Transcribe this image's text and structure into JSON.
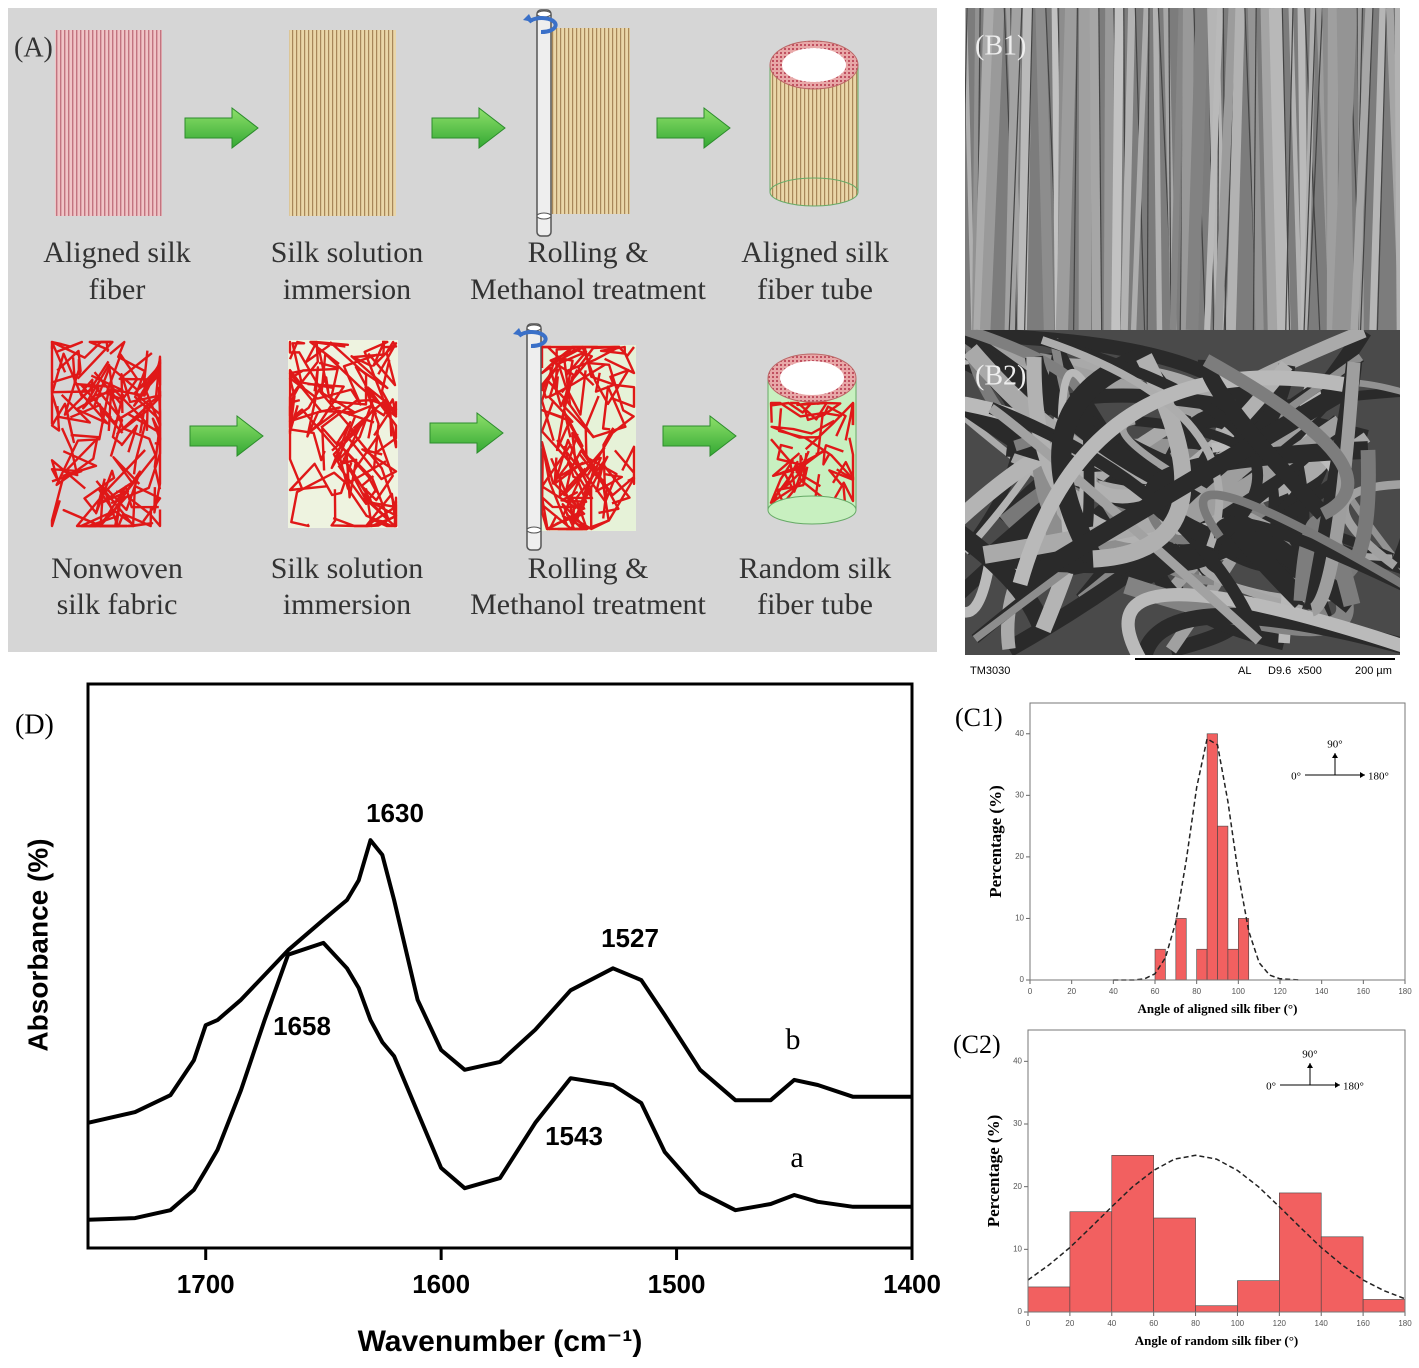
{
  "schematic": {
    "label": "(A)",
    "row1": [
      [
        "Aligned silk",
        "fiber"
      ],
      [
        "Silk solution",
        "immersion"
      ],
      [
        "Rolling &",
        "Methanol treatment"
      ],
      [
        "Aligned silk",
        "fiber tube"
      ]
    ],
    "row2": [
      [
        "Nonwoven",
        "silk fabric"
      ],
      [
        "Silk solution",
        "immersion"
      ],
      [
        "Rolling &",
        "Methanol treatment"
      ],
      [
        "Random silk",
        "fiber tube"
      ]
    ]
  },
  "sem": {
    "labels": [
      "(B1)",
      "(B2)"
    ],
    "footer_left": "TM3030",
    "footer_right": [
      "AL",
      "D9.6",
      "x500",
      "200 µm"
    ]
  },
  "chart_data": [
    {
      "type": "line",
      "panel_label": "(D)",
      "x_label": "Wavenumber (cm⁻¹)",
      "y_label": "Absorbance (%)",
      "x": [
        1750,
        1730,
        1715,
        1705,
        1700,
        1695,
        1685,
        1675,
        1665,
        1650,
        1640,
        1635,
        1630,
        1625,
        1620,
        1610,
        1600,
        1590,
        1575,
        1560,
        1545,
        1527,
        1515,
        1505,
        1490,
        1475,
        1460,
        1450,
        1440,
        1425,
        1400
      ],
      "xlim": [
        1750,
        1400
      ],
      "xticks": [
        1700,
        1600,
        1500,
        1400
      ],
      "ylim": [
        0,
        100
      ],
      "series": [
        {
          "name": "b",
          "color": "#000000",
          "values": [
            22.2,
            24.1,
            27.1,
            33.3,
            39.5,
            40.4,
            44.0,
            48.4,
            52.8,
            58.2,
            61.7,
            65.2,
            72.3,
            69.7,
            61.7,
            44.0,
            35.1,
            31.6,
            33.0,
            38.7,
            45.7,
            49.6,
            47.5,
            41.3,
            31.6,
            26.2,
            26.2,
            29.8,
            28.9,
            26.8,
            26.8
          ]
        },
        {
          "name": "a",
          "color": "#000000",
          "values": [
            5.0,
            5.3,
            6.7,
            10.3,
            13.8,
            17.4,
            28.0,
            40.4,
            52.0,
            54.1,
            49.6,
            46.1,
            40.4,
            36.5,
            34.0,
            24.1,
            14.2,
            10.6,
            12.4,
            22.2,
            30.1,
            28.9,
            25.7,
            17.0,
            9.9,
            6.7,
            7.8,
            9.4,
            8.2,
            7.3,
            7.3
          ]
        }
      ],
      "annotations": [
        "1630",
        "1527",
        "1658",
        "1543"
      ]
    },
    {
      "type": "histogram",
      "panel_label": "(C1)",
      "x_label": "Angle of aligned silk fiber (°)",
      "y_label": "Percentage (%)",
      "bins": [
        60,
        65,
        70,
        75,
        80,
        85,
        90,
        95,
        100,
        105
      ],
      "values": [
        5,
        0,
        10,
        0,
        5,
        40,
        25,
        5,
        10
      ],
      "color": "#f26060",
      "xlim": [
        0,
        180
      ],
      "xticks": [
        0,
        20,
        40,
        60,
        80,
        100,
        120,
        140,
        160,
        180
      ],
      "ylim": [
        0,
        45
      ],
      "yticks": [
        0,
        10,
        20,
        30,
        40
      ],
      "fit": {
        "x": [
          40,
          50,
          55,
          60,
          65,
          70,
          75,
          80,
          85,
          90,
          95,
          100,
          105,
          110,
          115,
          120,
          130
        ],
        "values": [
          0.0,
          0.0,
          0.2,
          1.0,
          3.6,
          9.4,
          19.5,
          31.3,
          39.2,
          38.2,
          29.0,
          17.2,
          7.9,
          2.8,
          0.8,
          0.2,
          0.0
        ]
      },
      "inset": [
        "90°",
        "0°",
        "180°"
      ]
    },
    {
      "type": "histogram",
      "panel_label": "(C2)",
      "x_label": "Angle of random silk fiber (°)",
      "y_label": "Percentage (%)",
      "bins": [
        0,
        20,
        40,
        60,
        80,
        100,
        120,
        140,
        160,
        180
      ],
      "values": [
        4,
        16,
        25,
        15,
        1,
        5,
        19,
        12,
        2
      ],
      "color": "#f26060",
      "xlim": [
        0,
        180
      ],
      "xticks": [
        0,
        20,
        40,
        60,
        80,
        100,
        120,
        140,
        160,
        180
      ],
      "ylim": [
        0,
        45
      ],
      "yticks": [
        0,
        10,
        20,
        30,
        40
      ],
      "fit": {
        "x": [
          0,
          10,
          20,
          30,
          40,
          50,
          60,
          70,
          80,
          90,
          100,
          110,
          120,
          130,
          140,
          150,
          160,
          170,
          180
        ],
        "values": [
          5.1,
          7.5,
          10.3,
          13.5,
          16.8,
          20.0,
          22.6,
          24.4,
          25.0,
          24.4,
          22.6,
          20.0,
          16.8,
          13.5,
          10.3,
          7.5,
          5.1,
          3.4,
          2.1
        ]
      },
      "inset": [
        "90°",
        "0°",
        "180°"
      ]
    }
  ]
}
